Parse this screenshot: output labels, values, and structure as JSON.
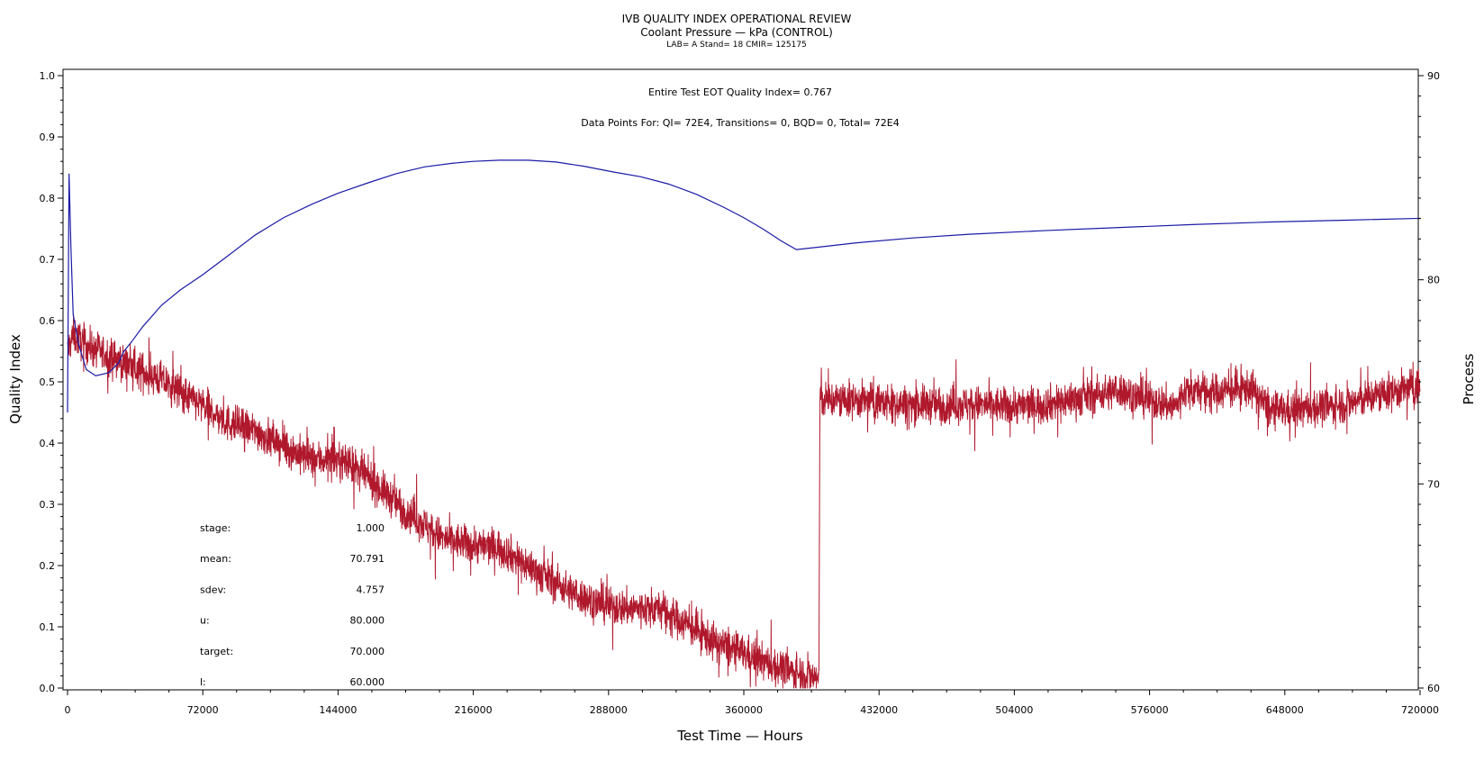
{
  "chart_data": {
    "type": "line",
    "title": "IVB QUALITY INDEX OPERATIONAL REVIEW",
    "subtitle": "Coolant Pressure — kPa (CONTROL)",
    "subtitle2": "LAB= A Stand= 18 CMIR= 125175",
    "xlabel": "Test Time — Hours",
    "ylabel_left": "Quality Index",
    "ylabel_right": "Process",
    "xlim": [
      0,
      720000
    ],
    "ylim_left": [
      0.0,
      1.0
    ],
    "ylim_right": [
      60,
      90
    ],
    "x_ticks": [
      "0",
      "72000",
      "144000",
      "216000",
      "288000",
      "360000",
      "432000",
      "504000",
      "576000",
      "648000",
      "720000"
    ],
    "y_left_ticks": [
      "0.0",
      "0.1",
      "0.2",
      "0.3",
      "0.4",
      "0.5",
      "0.6",
      "0.7",
      "0.8",
      "0.9",
      "1.0"
    ],
    "y_right_ticks": [
      "60",
      "70",
      "80",
      "90"
    ],
    "annotations": {
      "eot": "Entire Test EOT Quality Index=   0.767",
      "points": "Data Points For: QI=  72E4, Transitions=     0, BQD=     0, Total=  72E4"
    },
    "stats": [
      {
        "label": "stage:",
        "value": "1.000"
      },
      {
        "label": "mean:",
        "value": "70.791"
      },
      {
        "label": "sdev:",
        "value": "4.757"
      },
      {
        "label": "u:",
        "value": "80.000"
      },
      {
        "label": "target:",
        "value": "70.000"
      },
      {
        "label": "l:",
        "value": "60.000"
      }
    ],
    "series": [
      {
        "axis": "left",
        "color": "#1a1aa6",
        "x": [
          0,
          800,
          1800,
          3000,
          6000,
          10000,
          15000,
          22000,
          27000,
          30000,
          34000,
          40000,
          50000,
          60000,
          72000,
          85000,
          100000,
          115000,
          130000,
          144000,
          160000,
          175000,
          190000,
          205000,
          216000,
          230000,
          245000,
          260000,
          275000,
          290000,
          305000,
          320000,
          335000,
          350000,
          360000,
          370000,
          380000,
          388000,
          400000,
          420000,
          450000,
          480000,
          520000,
          560000,
          600000,
          640000,
          680000,
          720000
        ],
        "y": [
          0.45,
          0.84,
          0.72,
          0.61,
          0.56,
          0.52,
          0.51,
          0.515,
          0.53,
          0.55,
          0.565,
          0.59,
          0.625,
          0.65,
          0.675,
          0.705,
          0.74,
          0.768,
          0.79,
          0.808,
          0.825,
          0.84,
          0.851,
          0.857,
          0.86,
          0.862,
          0.862,
          0.859,
          0.852,
          0.843,
          0.835,
          0.823,
          0.806,
          0.784,
          0.768,
          0.75,
          0.73,
          0.716,
          0.72,
          0.727,
          0.735,
          0.741,
          0.747,
          0.752,
          0.757,
          0.761,
          0.764,
          0.767
        ]
      },
      {
        "axis": "right",
        "color": "#b0182c",
        "noise_sd": 0.45,
        "x": [
          0,
          3000,
          10000,
          30000,
          50000,
          72000,
          85000,
          100000,
          120000,
          130000,
          144000,
          150000,
          165000,
          180000,
          200000,
          216000,
          230000,
          250000,
          270000,
          288000,
          300000,
          315000,
          330000,
          345000,
          360000,
          375000,
          390000,
          400000,
          400500,
          420000,
          450000,
          480000,
          500000,
          520000,
          550000,
          560000,
          575000,
          590000,
          595000,
          610000,
          630000,
          640000,
          650000,
          680000,
          700000,
          720000
        ],
        "y": [
          76.5,
          77.3,
          76.8,
          75.9,
          75.1,
          73.8,
          73.0,
          72.6,
          71.6,
          71.2,
          71.2,
          71.0,
          69.9,
          68.7,
          67.3,
          67.0,
          66.9,
          65.7,
          64.6,
          64.0,
          63.9,
          63.9,
          63.1,
          62.2,
          61.7,
          61.1,
          60.7,
          60.5,
          74.1,
          74.1,
          73.9,
          73.9,
          73.8,
          73.9,
          74.4,
          74.6,
          74.1,
          73.8,
          74.6,
          74.5,
          74.7,
          73.6,
          73.6,
          73.9,
          74.4,
          74.8
        ]
      }
    ]
  }
}
